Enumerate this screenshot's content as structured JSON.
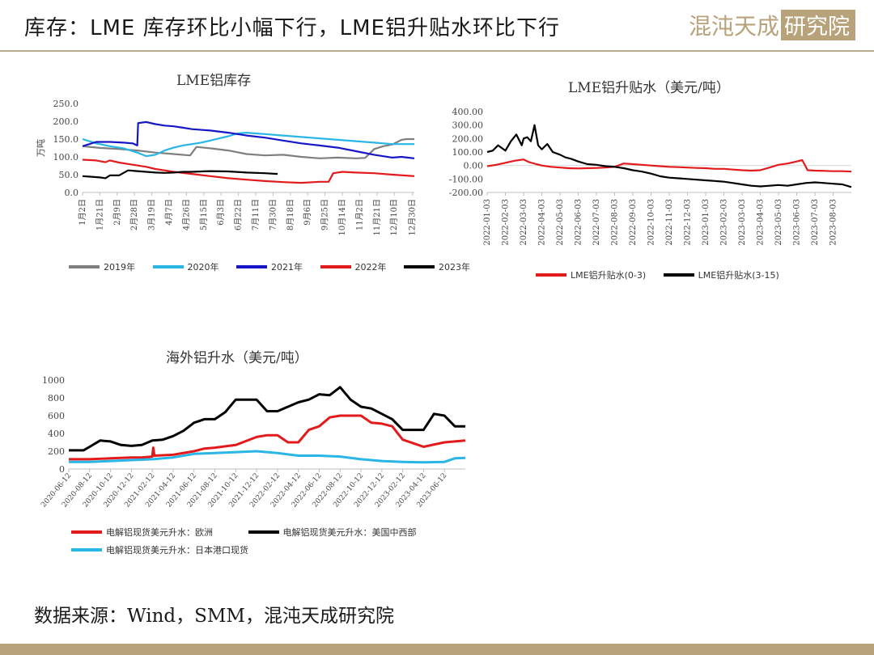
{
  "header": {
    "title": "库存：LME 库存环比小幅下行，LME铝升贴水环比下行",
    "logo_text": "混沌天成研究院",
    "accent": "#b7a27a"
  },
  "source": "数据来源：Wind，SMM，混沌天成研究院",
  "chart_data": [
    {
      "type": "line",
      "title": "LME铝库存",
      "ylabel": "万吨",
      "ylim": [
        0,
        250
      ],
      "yticks": [
        "0.0",
        "50.0",
        "100.0",
        "150.0",
        "200.0",
        "250.0"
      ],
      "xticks": [
        "1月2日",
        "1月21日",
        "2月9日",
        "2月28日",
        "3月19日",
        "4月7日",
        "4月26日",
        "5月15日",
        "6月3日",
        "6月22日",
        "7月11日",
        "7月30日",
        "8月18日",
        "9月6日",
        "9月25日",
        "10月14日",
        "11月2日",
        "11月21日",
        "12月10日",
        "12月30日"
      ],
      "x_days": [
        0,
        19,
        38,
        57,
        76,
        95,
        114,
        133,
        152,
        171,
        190,
        209,
        228,
        247,
        266,
        285,
        304,
        323,
        342,
        362
      ],
      "xlim": [
        0,
        364
      ],
      "legend_position": "bottom",
      "series": [
        {
          "name": "2019年",
          "color": "#7f7f7f",
          "x": [
            0,
            20,
            40,
            60,
            80,
            100,
            118,
            125,
            140,
            160,
            180,
            200,
            220,
            240,
            260,
            280,
            300,
            310,
            320,
            330,
            340,
            350,
            355,
            364
          ],
          "y": [
            130,
            125,
            122,
            118,
            112,
            108,
            104,
            128,
            124,
            118,
            108,
            104,
            106,
            100,
            96,
            98,
            96,
            97,
            122,
            130,
            135,
            148,
            150,
            150
          ]
        },
        {
          "name": "2020年",
          "color": "#29b5e6",
          "x": [
            0,
            15,
            30,
            45,
            60,
            70,
            80,
            90,
            100,
            110,
            120,
            130,
            140,
            150,
            160,
            170,
            180,
            190,
            200,
            220,
            240,
            260,
            280,
            300,
            320,
            340,
            364
          ],
          "y": [
            150,
            138,
            130,
            124,
            112,
            102,
            106,
            118,
            126,
            132,
            136,
            140,
            146,
            152,
            158,
            166,
            168,
            166,
            164,
            160,
            156,
            152,
            148,
            144,
            140,
            136,
            136
          ]
        },
        {
          "name": "2021年",
          "color": "#1616c8",
          "x": [
            0,
            15,
            30,
            45,
            55,
            60,
            61,
            70,
            80,
            90,
            100,
            110,
            120,
            140,
            160,
            180,
            200,
            220,
            240,
            260,
            280,
            300,
            320,
            340,
            350,
            364
          ],
          "y": [
            130,
            142,
            142,
            140,
            138,
            132,
            195,
            198,
            192,
            188,
            186,
            182,
            178,
            174,
            168,
            160,
            154,
            146,
            138,
            132,
            126,
            116,
            106,
            98,
            100,
            96
          ]
        },
        {
          "name": "2022年",
          "color": "#e31a1c",
          "x": [
            0,
            15,
            25,
            30,
            40,
            50,
            60,
            70,
            80,
            90,
            100,
            120,
            140,
            160,
            180,
            200,
            220,
            240,
            260,
            270,
            275,
            285,
            300,
            320,
            340,
            364
          ],
          "y": [
            92,
            90,
            85,
            90,
            84,
            80,
            76,
            72,
            66,
            62,
            58,
            52,
            46,
            40,
            36,
            32,
            29,
            27,
            30,
            30,
            54,
            58,
            56,
            54,
            50,
            46
          ]
        },
        {
          "name": "2023年",
          "color": "#000000",
          "x": [
            0,
            10,
            20,
            25,
            30,
            40,
            50,
            60,
            70,
            80,
            90,
            100,
            110,
            120,
            140,
            160,
            180,
            200,
            214
          ],
          "y": [
            46,
            44,
            42,
            40,
            48,
            48,
            62,
            60,
            58,
            56,
            55,
            56,
            58,
            58,
            60,
            59,
            56,
            54,
            52
          ]
        }
      ]
    },
    {
      "type": "line",
      "title": "LME铝升贴水（美元/吨）",
      "ylim": [
        -200,
        400
      ],
      "yticks": [
        "-200.00",
        "-100.00",
        "0.00",
        "100.00",
        "200.00",
        "300.00",
        "400.00"
      ],
      "xticks": [
        "2022-01-03",
        "2022-02-03",
        "2022-03-03",
        "2022-04-03",
        "2022-05-03",
        "2022-06-03",
        "2022-07-03",
        "2022-08-03",
        "2022-09-03",
        "2022-10-03",
        "2022-11-03",
        "2022-12-03",
        "2023-01-03",
        "2023-02-03",
        "2023-03-03",
        "2023-04-03",
        "2023-05-03",
        "2023-06-03",
        "2023-07-03",
        "2023-08-03"
      ],
      "xlim": [
        0,
        20
      ],
      "legend_position": "bottom",
      "series": [
        {
          "name": "LME铝升贴水(0-3)",
          "color": "#e31a1c",
          "x": [
            0,
            0.5,
            1,
            1.5,
            2,
            2.3,
            2.7,
            3,
            3.5,
            4,
            4.5,
            5,
            5.5,
            6,
            6.5,
            7,
            7.5,
            8,
            8.5,
            9,
            9.5,
            10,
            10.5,
            11,
            11.5,
            12,
            12.5,
            13,
            13.5,
            14,
            14.5,
            15,
            15.5,
            16,
            16.5,
            17,
            17.3,
            17.6,
            18,
            18.5,
            19,
            19.5,
            20
          ],
          "y": [
            -5,
            5,
            20,
            35,
            45,
            25,
            10,
            0,
            -10,
            -15,
            -20,
            -22,
            -20,
            -18,
            -15,
            -10,
            15,
            10,
            5,
            0,
            -5,
            -10,
            -12,
            -15,
            -18,
            -20,
            -25,
            -25,
            -30,
            -35,
            -38,
            -35,
            -15,
            5,
            15,
            30,
            40,
            -35,
            -38,
            -40,
            -42,
            -42,
            -45
          ]
        },
        {
          "name": "LME铝升贴水(3-15)",
          "color": "#000000",
          "x": [
            0,
            0.3,
            0.6,
            1,
            1.3,
            1.6,
            1.9,
            2,
            2.2,
            2.4,
            2.6,
            2.8,
            3,
            3.3,
            3.6,
            4,
            4.3,
            4.6,
            5,
            5.5,
            6,
            6.5,
            7,
            7.5,
            8,
            8.5,
            9,
            9.5,
            10,
            10.5,
            11,
            11.5,
            12,
            12.5,
            13,
            13.5,
            14,
            14.5,
            15,
            15.5,
            16,
            16.5,
            17,
            17.5,
            18,
            18.5,
            19,
            19.5,
            20
          ],
          "y": [
            100,
            110,
            150,
            110,
            180,
            230,
            150,
            200,
            210,
            180,
            300,
            150,
            120,
            160,
            100,
            80,
            60,
            50,
            30,
            10,
            5,
            -5,
            -10,
            -20,
            -35,
            -45,
            -60,
            -80,
            -90,
            -95,
            -100,
            -105,
            -110,
            -115,
            -120,
            -130,
            -140,
            -150,
            -155,
            -150,
            -145,
            -150,
            -140,
            -130,
            -125,
            -130,
            -135,
            -140,
            -160
          ]
        }
      ]
    },
    {
      "type": "line",
      "title": "海外铝升水（美元/吨）",
      "ylim": [
        0,
        1000
      ],
      "yticks": [
        "0",
        "200",
        "400",
        "600",
        "800",
        "1000"
      ],
      "xticks": [
        "2020-06-12",
        "2020-08-12",
        "2020-10-12",
        "2020-12-12",
        "2021-02-12",
        "2021-04-12",
        "2021-06-12",
        "2021-08-12",
        "2021-10-12",
        "2021-12-12",
        "2022-02-12",
        "2022-04-12",
        "2022-06-12",
        "2022-08-12",
        "2022-10-12",
        "2022-12-12",
        "2023-02-12",
        "2023-04-12",
        "2023-06-12"
      ],
      "xlim": [
        0,
        19
      ],
      "legend_position": "bottom",
      "series": [
        {
          "name": "电解铝现货美元升水：欧洲",
          "color": "#e31a1c",
          "x": [
            0,
            1,
            2,
            3,
            3.5,
            4,
            4.05,
            4.1,
            5,
            6,
            6.5,
            7,
            8,
            9,
            9.5,
            10,
            10.5,
            11,
            11.5,
            12,
            12.5,
            13,
            14,
            14.5,
            15,
            15.5,
            16,
            17,
            18,
            19
          ],
          "y": [
            110,
            110,
            120,
            130,
            130,
            140,
            240,
            150,
            160,
            200,
            230,
            240,
            270,
            360,
            380,
            380,
            300,
            300,
            440,
            480,
            580,
            600,
            600,
            520,
            510,
            480,
            330,
            250,
            300,
            320
          ]
        },
        {
          "name": "电解铝现货美元升水：美国中西部",
          "color": "#000000",
          "x": [
            0,
            0.7,
            1,
            1.5,
            2,
            2.5,
            3,
            3.5,
            4,
            4.5,
            5,
            5.5,
            6,
            6.5,
            7,
            7.5,
            8,
            8.5,
            9,
            9.5,
            10,
            10.5,
            11,
            11.5,
            12,
            12.5,
            13,
            13.5,
            14,
            14.5,
            15,
            15.5,
            16,
            16.5,
            17,
            17.5,
            18,
            18.5,
            19
          ],
          "y": [
            210,
            210,
            250,
            320,
            310,
            270,
            260,
            270,
            320,
            330,
            370,
            430,
            520,
            560,
            560,
            640,
            780,
            780,
            780,
            650,
            650,
            700,
            750,
            780,
            840,
            830,
            920,
            780,
            700,
            680,
            620,
            560,
            440,
            440,
            440,
            620,
            600,
            480,
            480
          ]
        },
        {
          "name": "电解铝现货美元升水：日本港口现货",
          "color": "#29b5e6",
          "x": [
            0,
            1,
            2,
            3,
            4,
            5,
            6,
            7,
            8,
            9,
            10,
            11,
            12,
            13,
            14,
            15,
            16,
            17,
            18,
            18.5,
            19
          ],
          "y": [
            80,
            80,
            90,
            100,
            110,
            130,
            170,
            180,
            190,
            200,
            180,
            150,
            150,
            140,
            110,
            90,
            80,
            75,
            80,
            120,
            125
          ]
        }
      ]
    }
  ]
}
